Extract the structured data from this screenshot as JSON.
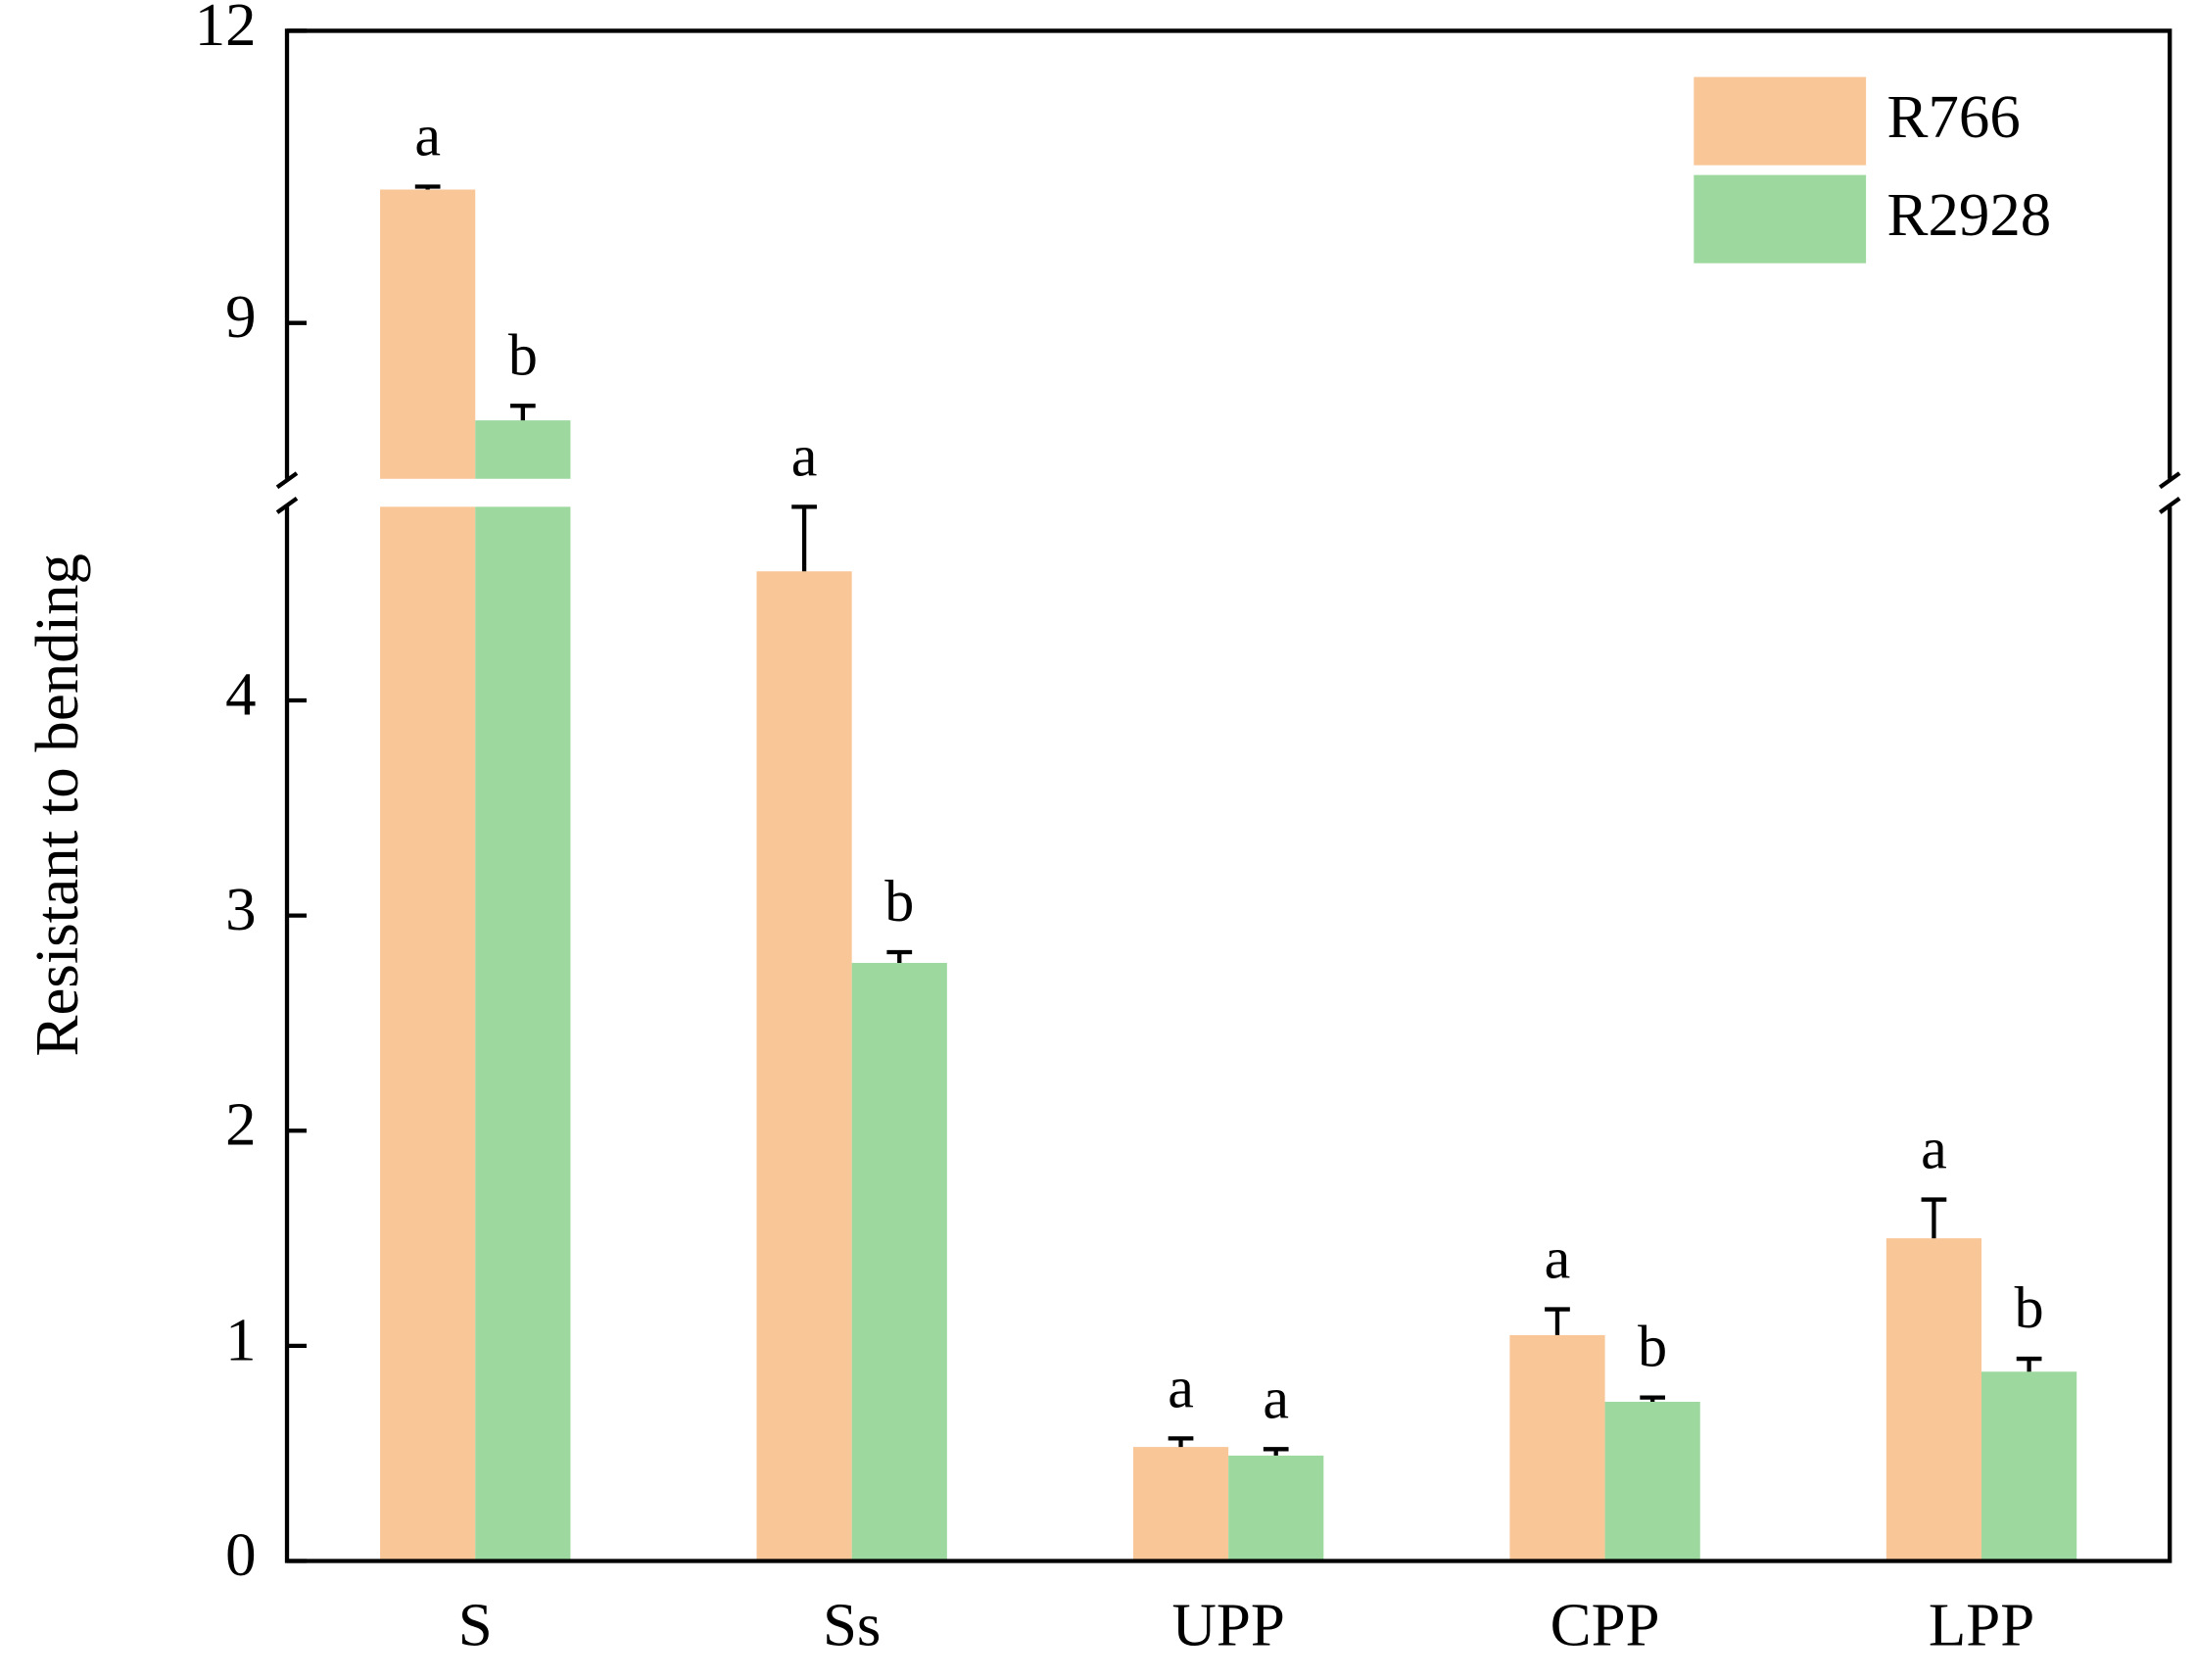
{
  "chart_data": {
    "type": "bar",
    "y_label": "Resistant to bending",
    "categories": [
      "S",
      "Ss",
      "UPP",
      "CPP",
      "LPP"
    ],
    "series": [
      {
        "name": "R766",
        "color": "#f9c698",
        "values": [
          10.37,
          4.6,
          0.53,
          1.05,
          1.5
        ],
        "errors": [
          0.03,
          0.3,
          0.04,
          0.12,
          0.18
        ],
        "labels": [
          "a",
          "a",
          "a",
          "a",
          "a"
        ]
      },
      {
        "name": "R2928",
        "color": "#9dd89e",
        "values": [
          8.0,
          2.78,
          0.49,
          0.74,
          0.88
        ],
        "errors": [
          0.15,
          0.05,
          0.03,
          0.02,
          0.06
        ],
        "labels": [
          "b",
          "b",
          "a",
          "b",
          "b"
        ]
      }
    ],
    "ylim": [
      0,
      12
    ],
    "ybreak": [
      4.9,
      7.4
    ],
    "yticks": [
      0,
      1,
      2,
      3,
      4,
      9,
      12
    ],
    "legend": "upper right"
  }
}
